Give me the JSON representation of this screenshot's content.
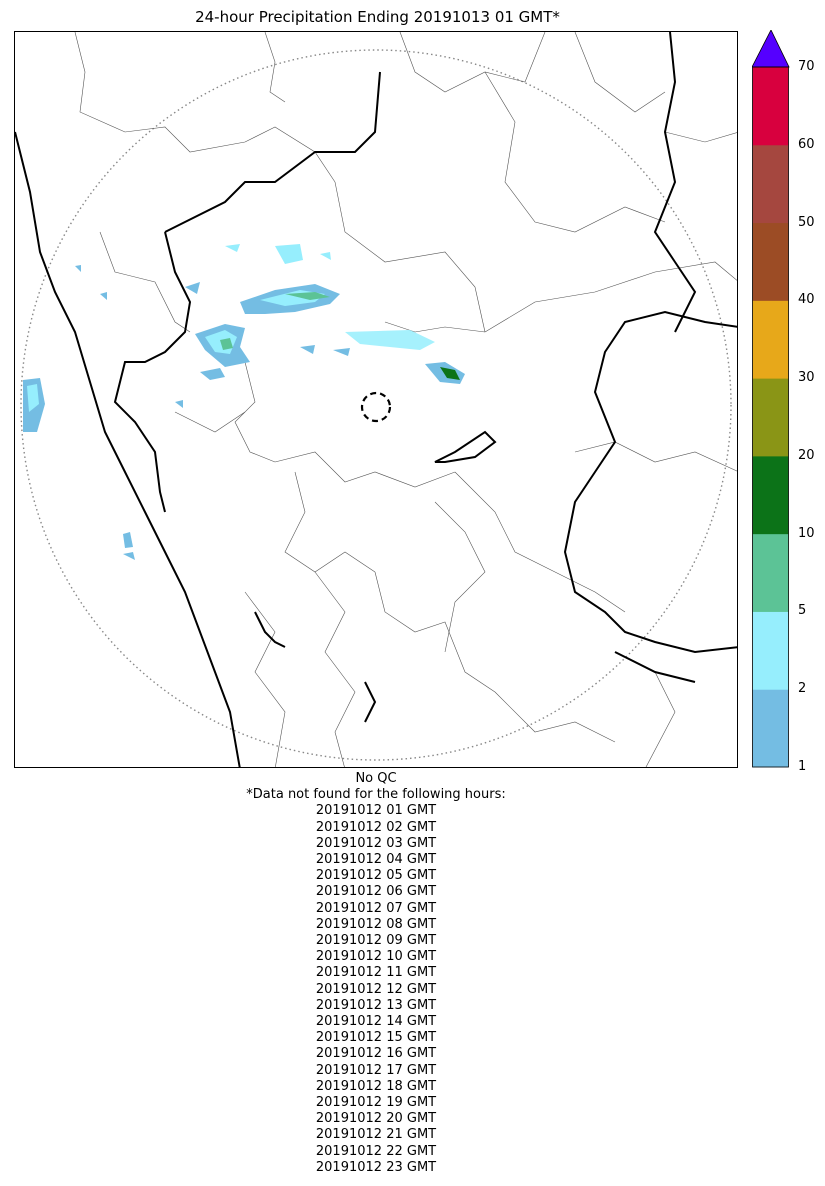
{
  "title": "24-hour Precipitation Ending 20191013 01 GMT*",
  "colorbar": {
    "ticks": [
      "1",
      "2",
      "5",
      "10",
      "20",
      "30",
      "40",
      "50",
      "60",
      "70"
    ],
    "colors": [
      "#74bde3",
      "#96eefd",
      "#5cc396",
      "#0c7318",
      "#8a9516",
      "#e7a81a",
      "#9c4c25",
      "#a5473f",
      "#d8003e"
    ],
    "extend_color": "#5500ff"
  },
  "qc_label": "No QC",
  "missing_header": "*Data not found for the following hours:",
  "missing_hours": [
    "20191012 01 GMT",
    "20191012 02 GMT",
    "20191012 03 GMT",
    "20191012 04 GMT",
    "20191012 05 GMT",
    "20191012 06 GMT",
    "20191012 07 GMT",
    "20191012 08 GMT",
    "20191012 09 GMT",
    "20191012 10 GMT",
    "20191012 11 GMT",
    "20191012 12 GMT",
    "20191012 13 GMT",
    "20191012 14 GMT",
    "20191012 15 GMT",
    "20191012 16 GMT",
    "20191012 17 GMT",
    "20191012 18 GMT",
    "20191012 19 GMT",
    "20191012 20 GMT",
    "20191012 21 GMT",
    "20191012 22 GMT",
    "20191012 23 GMT"
  ]
}
